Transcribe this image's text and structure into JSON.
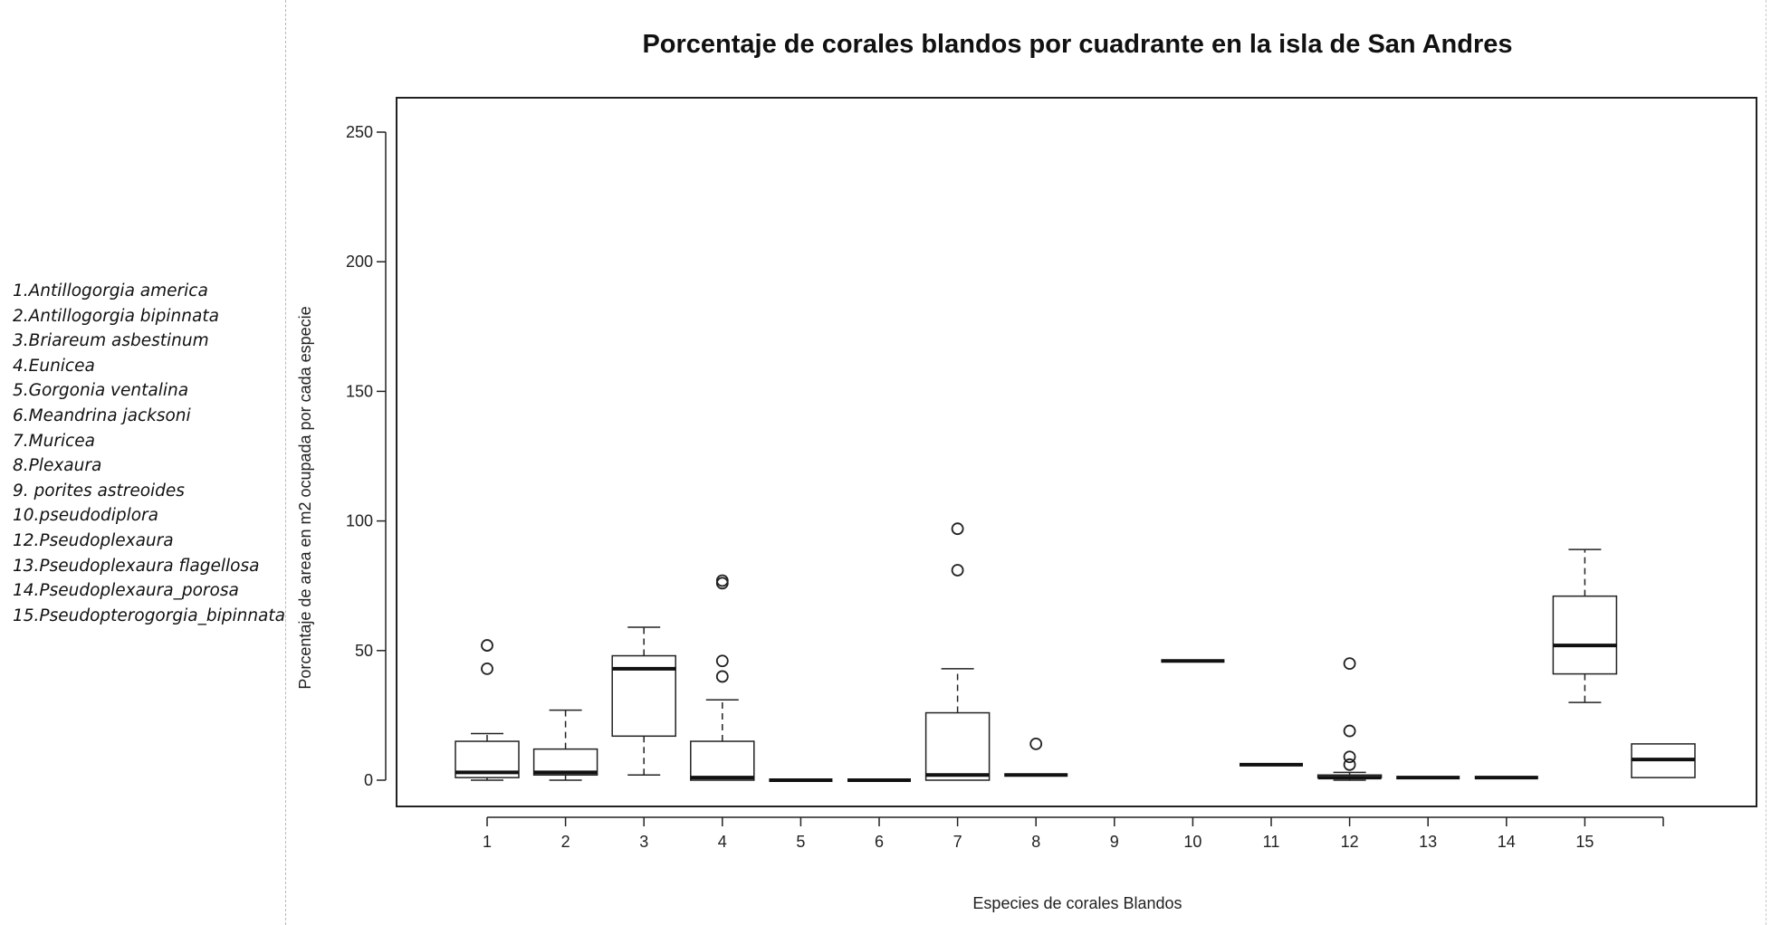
{
  "chart_data": {
    "type": "boxplot",
    "title": "Porcentaje de corales blandos por cuadrante en la isla de San Andres",
    "xlabel": "Especies de corales Blandos",
    "ylabel": "Porcentaje de area en m2 ocupada por cada especie",
    "ylim": [
      -9,
      262
    ],
    "yticks": [
      0,
      50,
      100,
      150,
      200,
      250
    ],
    "categories": [
      "1",
      "2",
      "3",
      "4",
      "5",
      "6",
      "7",
      "8",
      "9",
      "10",
      "11",
      "12",
      "13",
      "14",
      "15",
      ""
    ],
    "legend": [
      "1.Antillogorgia america",
      "2.Antillogorgia bipinnata",
      "3.Briareum asbestinum",
      "4.Eunicea",
      "5.Gorgonia ventalina",
      "6.Meandrina jacksoni",
      "7.Muricea",
      "8.Plexaura",
      "9. porites astreoides",
      "10.pseudodiplora",
      "12.Pseudoplexaura",
      "13.Pseudoplexaura flagellosa",
      "14.Pseudoplexaura_porosa",
      "15.Pseudopterogorgia_bipinnata"
    ],
    "boxes": [
      {
        "category": "1",
        "min": 0,
        "q1": 1,
        "median": 3,
        "q3": 15,
        "max": 18,
        "outliers": [
          43,
          52
        ]
      },
      {
        "category": "2",
        "min": 0,
        "q1": 2,
        "median": 3,
        "q3": 12,
        "max": 27,
        "outliers": []
      },
      {
        "category": "3",
        "min": 2,
        "q1": 17,
        "median": 43,
        "q3": 48,
        "max": 59,
        "outliers": []
      },
      {
        "category": "4",
        "min": 0,
        "q1": 0,
        "median": 1,
        "q3": 15,
        "max": 31,
        "outliers": [
          40,
          46,
          76,
          77
        ]
      },
      {
        "category": "5",
        "min": 0,
        "q1": 0,
        "median": 0,
        "q3": 0,
        "max": 0,
        "outliers": []
      },
      {
        "category": "6",
        "min": 0,
        "q1": 0,
        "median": 0,
        "q3": 0,
        "max": 0,
        "outliers": []
      },
      {
        "category": "7",
        "min": 0,
        "q1": 0,
        "median": 2,
        "q3": 26,
        "max": 43,
        "outliers": [
          81,
          97
        ]
      },
      {
        "category": "8",
        "min": 2,
        "q1": 2,
        "median": 2,
        "q3": 2,
        "max": 2,
        "outliers": [
          14
        ]
      },
      {
        "category": "9",
        "min": null,
        "q1": null,
        "median": null,
        "q3": null,
        "max": null,
        "outliers": []
      },
      {
        "category": "10",
        "min": 46,
        "q1": 46,
        "median": 46,
        "q3": 46,
        "max": 46,
        "outliers": []
      },
      {
        "category": "11",
        "min": 6,
        "q1": 6,
        "median": 6,
        "q3": 6,
        "max": 6,
        "outliers": []
      },
      {
        "category": "12",
        "min": 0,
        "q1": 1,
        "median": 1,
        "q3": 2,
        "max": 3,
        "outliers": [
          6,
          9,
          19,
          45
        ]
      },
      {
        "category": "13",
        "min": 1,
        "q1": 1,
        "median": 1,
        "q3": 1,
        "max": 1,
        "outliers": []
      },
      {
        "category": "14",
        "min": 1,
        "q1": 1,
        "median": 1,
        "q3": 1,
        "max": 1,
        "outliers": []
      },
      {
        "category": "15",
        "min": 30,
        "q1": 41,
        "median": 52,
        "q3": 71,
        "max": 89,
        "outliers": []
      },
      {
        "category": "",
        "min": 1,
        "q1": 1,
        "median": 8,
        "q3": 14,
        "max": 14,
        "outliers": []
      }
    ],
    "grid": false,
    "legend_placement": "left"
  }
}
